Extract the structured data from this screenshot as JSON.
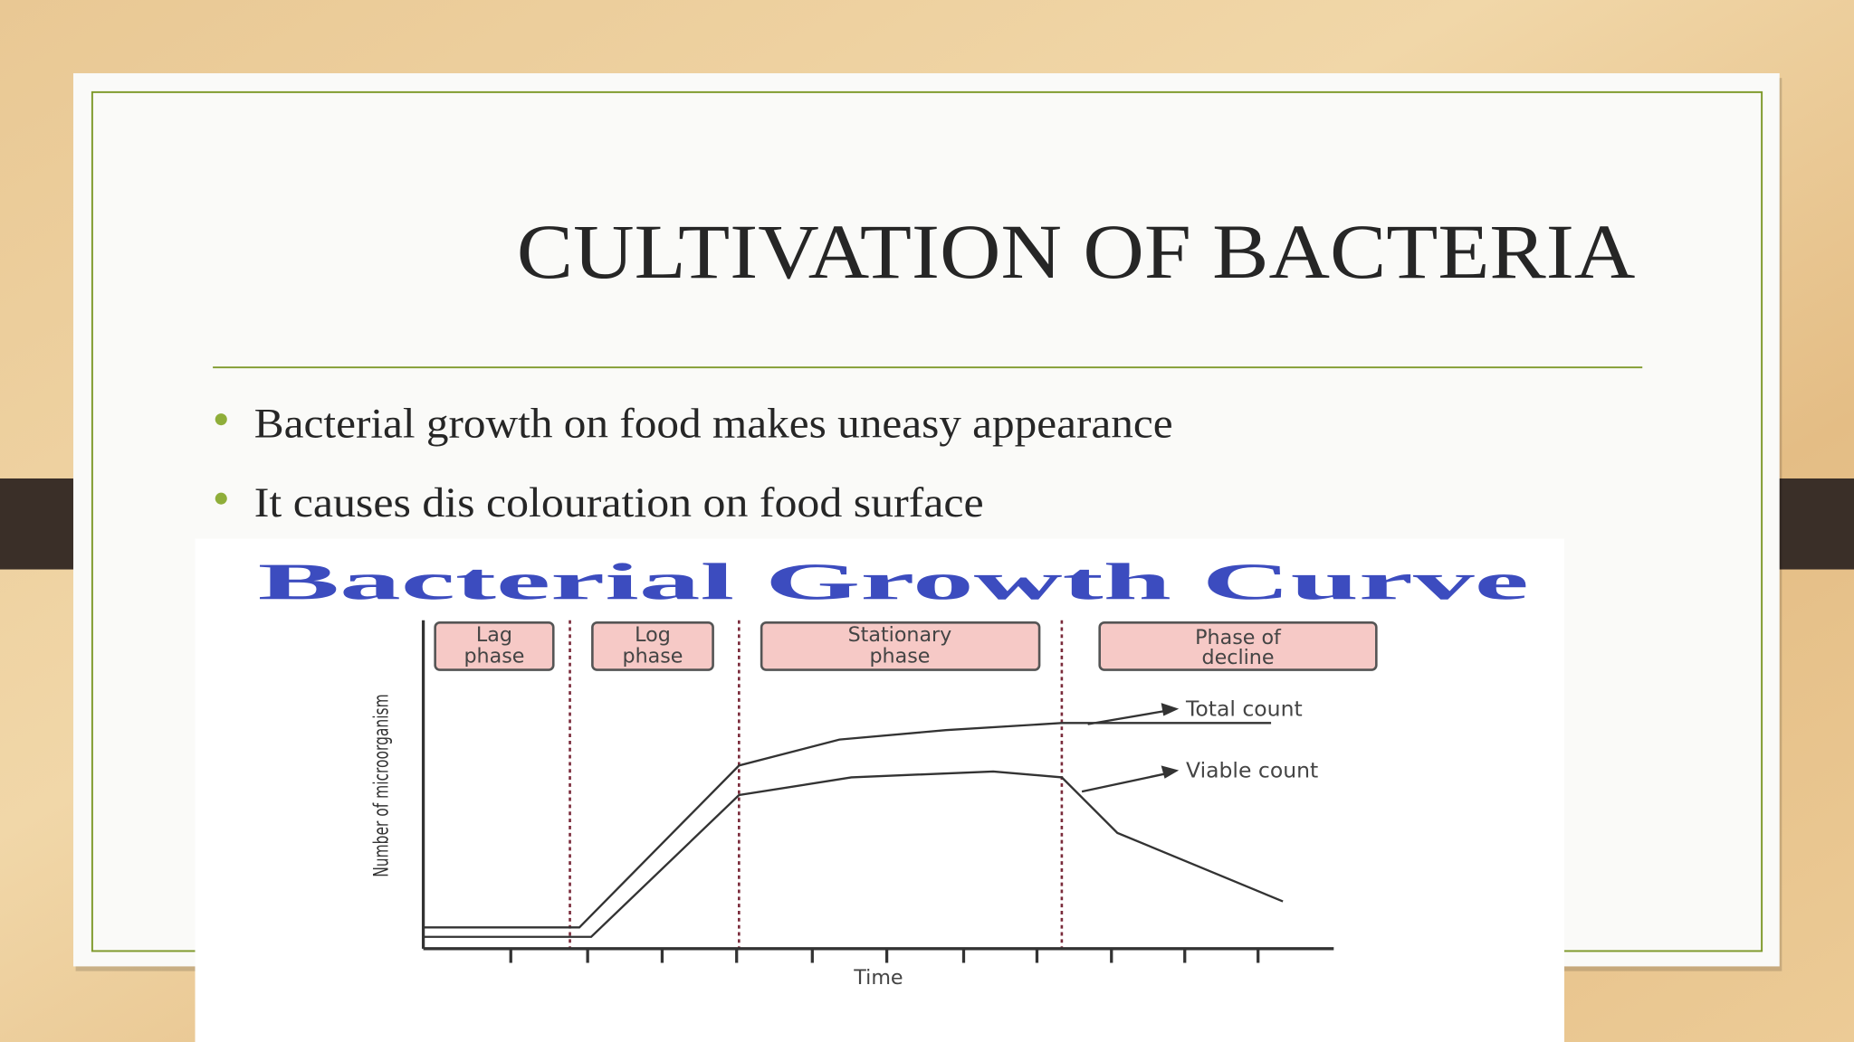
{
  "slide": {
    "title": "CULTIVATION OF BACTERIA",
    "bullets": [
      "Bacterial growth on food makes uneasy appearance",
      "It causes dis colouration on food surface"
    ]
  },
  "figure": {
    "title": "Bacterial Growth Curve",
    "phases": [
      [
        "Lag",
        "phase"
      ],
      [
        "Log",
        "phase"
      ],
      [
        "Stationary",
        "phase"
      ],
      [
        "Phase of",
        "decline"
      ]
    ],
    "curves": [
      "Total count",
      "Viable count"
    ],
    "y_label": "Number of microorganism",
    "x_label": "Time"
  }
}
